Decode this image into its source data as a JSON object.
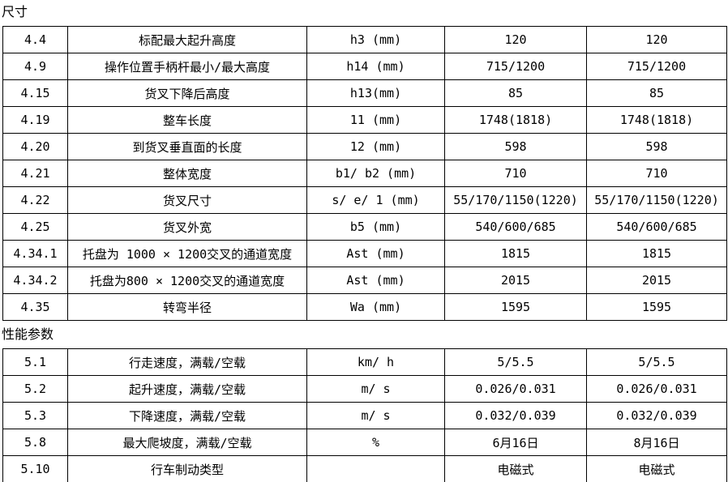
{
  "colors": {
    "background": "#ffffff",
    "border": "#000000",
    "text": "#000000"
  },
  "sections": [
    {
      "title": "尺寸",
      "rows": [
        {
          "no": "4.4",
          "name": "标配最大起升高度",
          "symbol": "h3 (mm)",
          "value1": "120",
          "value2": "120"
        },
        {
          "no": "4.9",
          "name": "操作位置手柄杆最小/最大高度",
          "symbol": "h14 (mm)",
          "value1": "715/1200",
          "value2": "715/1200"
        },
        {
          "no": "4.15",
          "name": "货叉下降后高度",
          "symbol": "h13(mm)",
          "value1": "85",
          "value2": "85"
        },
        {
          "no": "4.19",
          "name": "整车长度",
          "symbol": "11 (mm)",
          "value1": "1748(1818)",
          "value2": "1748(1818)"
        },
        {
          "no": "4.20",
          "name": "到货叉垂直面的长度",
          "symbol": "12 (mm)",
          "value1": "598",
          "value2": "598"
        },
        {
          "no": "4.21",
          "name": "整体宽度",
          "symbol": "b1/ b2 (mm)",
          "value1": "710",
          "value2": "710"
        },
        {
          "no": "4.22",
          "name": "货叉尺寸",
          "symbol": "s/ e/ 1 (mm)",
          "value1": "55/170/1150(1220)",
          "value2": "55/170/1150(1220)"
        },
        {
          "no": "4.25",
          "name": "货叉外宽",
          "symbol": "b5 (mm)",
          "value1": "540/600/685",
          "value2": "540/600/685"
        },
        {
          "no": "4.34.1",
          "name": "托盘为 1000 × 1200交叉的通道宽度",
          "symbol": "Ast (mm)",
          "value1": "1815",
          "value2": "1815"
        },
        {
          "no": "4.34.2",
          "name": "托盘为800 × 1200交叉的通道宽度",
          "symbol": "Ast (mm)",
          "value1": "2015",
          "value2": "2015"
        },
        {
          "no": "4.35",
          "name": "转弯半径",
          "symbol": "Wa (mm)",
          "value1": "1595",
          "value2": "1595"
        }
      ]
    },
    {
      "title": "性能参数",
      "rows": [
        {
          "no": "5.1",
          "name": "行走速度，满载/空载",
          "symbol": "km/ h",
          "value1": "5/5.5",
          "value2": "5/5.5"
        },
        {
          "no": "5.2",
          "name": "起升速度，满载/空载",
          "symbol": "m/ s",
          "value1": "0.026/0.031",
          "value2": "0.026/0.031"
        },
        {
          "no": "5.3",
          "name": "下降速度，满载/空载",
          "symbol": "m/ s",
          "value1": "0.032/0.039",
          "value2": "0.032/0.039"
        },
        {
          "no": "5.8",
          "name": "最大爬坡度，满载/空载",
          "symbol": "%",
          "value1": "6月16日",
          "value2": "8月16日"
        },
        {
          "no": "5.10",
          "name": "行车制动类型",
          "symbol": "",
          "value1": "电磁式",
          "value2": "电磁式"
        }
      ]
    }
  ]
}
